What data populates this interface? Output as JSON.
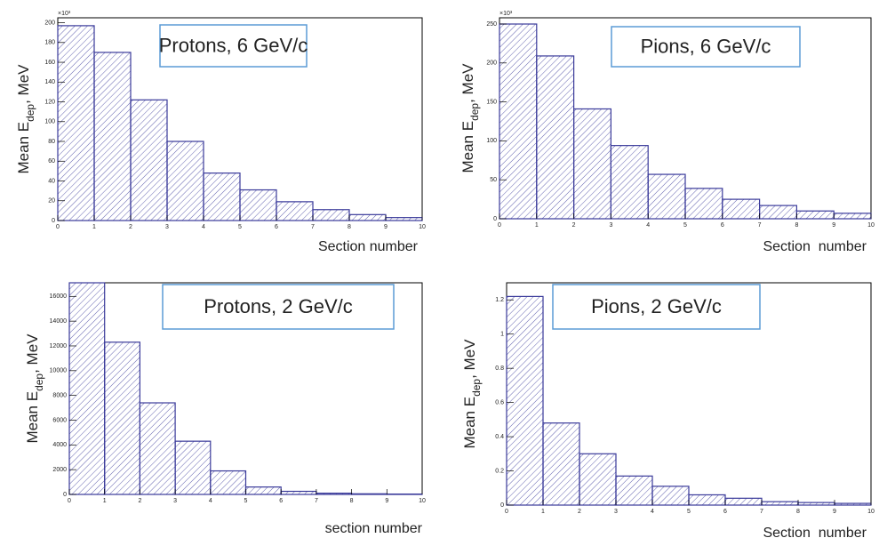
{
  "chart_data": [
    {
      "type": "histogram",
      "box_title": "Protons, 6 GeV/c",
      "ylabel": "Mean E",
      "ylabel_sub": "dep",
      "ylabel_end": ", MeV",
      "xlabel": "Section number",
      "multiplier": "×10³",
      "bins": [
        0,
        1,
        2,
        3,
        4,
        5,
        6,
        7,
        8,
        9,
        10
      ],
      "values": [
        197,
        170,
        122,
        80,
        48,
        31,
        19,
        11,
        6,
        3
      ],
      "xlim": [
        0,
        10
      ],
      "xticks": [
        0,
        1,
        2,
        3,
        4,
        5,
        6,
        7,
        8,
        9,
        10
      ],
      "ylim": [
        0,
        205
      ],
      "yticks": [
        0,
        20,
        40,
        60,
        80,
        100,
        120,
        140,
        160,
        180,
        200
      ],
      "color": "#3a3a9a"
    },
    {
      "type": "histogram",
      "box_title": "Pions, 6 GeV/c",
      "ylabel": "Mean E",
      "ylabel_sub": "dep",
      "ylabel_end": ", MeV",
      "xlabel": "Section  number",
      "multiplier": "×10³",
      "bins": [
        0,
        1,
        2,
        3,
        4,
        5,
        6,
        7,
        8,
        9,
        10
      ],
      "values": [
        250,
        209,
        141,
        94,
        57,
        39,
        25,
        17,
        10,
        7
      ],
      "xlim": [
        0,
        10
      ],
      "xticks": [
        0,
        1,
        2,
        3,
        4,
        5,
        6,
        7,
        8,
        9,
        10
      ],
      "ylim": [
        0,
        258
      ],
      "yticks": [
        0,
        50,
        100,
        150,
        200,
        250
      ],
      "color": "#3a3a9a"
    },
    {
      "type": "histogram",
      "box_title": "Protons, 2 GeV/c",
      "ylabel": "Mean E",
      "ylabel_sub": "dep",
      "ylabel_end": ", MeV",
      "xlabel": "section number",
      "bins": [
        0,
        1,
        2,
        3,
        4,
        5,
        6,
        7,
        8,
        9,
        10
      ],
      "values": [
        17100,
        12300,
        7400,
        4300,
        1900,
        600,
        250,
        100,
        50,
        30
      ],
      "xlim": [
        0,
        10
      ],
      "xticks": [
        0,
        1,
        2,
        3,
        4,
        5,
        6,
        7,
        8,
        9,
        10
      ],
      "ylim": [
        0,
        17100
      ],
      "yticks": [
        0,
        2000,
        4000,
        6000,
        8000,
        10000,
        12000,
        14000,
        16000
      ],
      "color": "#3a3a9a"
    },
    {
      "type": "histogram",
      "box_title": "Pions, 2 GeV/c",
      "ylabel": "Mean E",
      "ylabel_sub": "dep",
      "ylabel_end": ", MeV",
      "xlabel": "Section  number",
      "bins": [
        0,
        1,
        2,
        3,
        4,
        5,
        6,
        7,
        8,
        9,
        10
      ],
      "values": [
        1.22,
        0.48,
        0.3,
        0.17,
        0.11,
        0.06,
        0.04,
        0.02,
        0.015,
        0.01
      ],
      "xlim": [
        0,
        10
      ],
      "xticks": [
        0,
        1,
        2,
        3,
        4,
        5,
        6,
        7,
        8,
        9,
        10
      ],
      "ylim": [
        0,
        1.3
      ],
      "yticks": [
        0,
        0.2,
        0.4,
        0.6,
        0.8,
        1,
        1.2
      ],
      "color": "#3a3a9a"
    }
  ]
}
